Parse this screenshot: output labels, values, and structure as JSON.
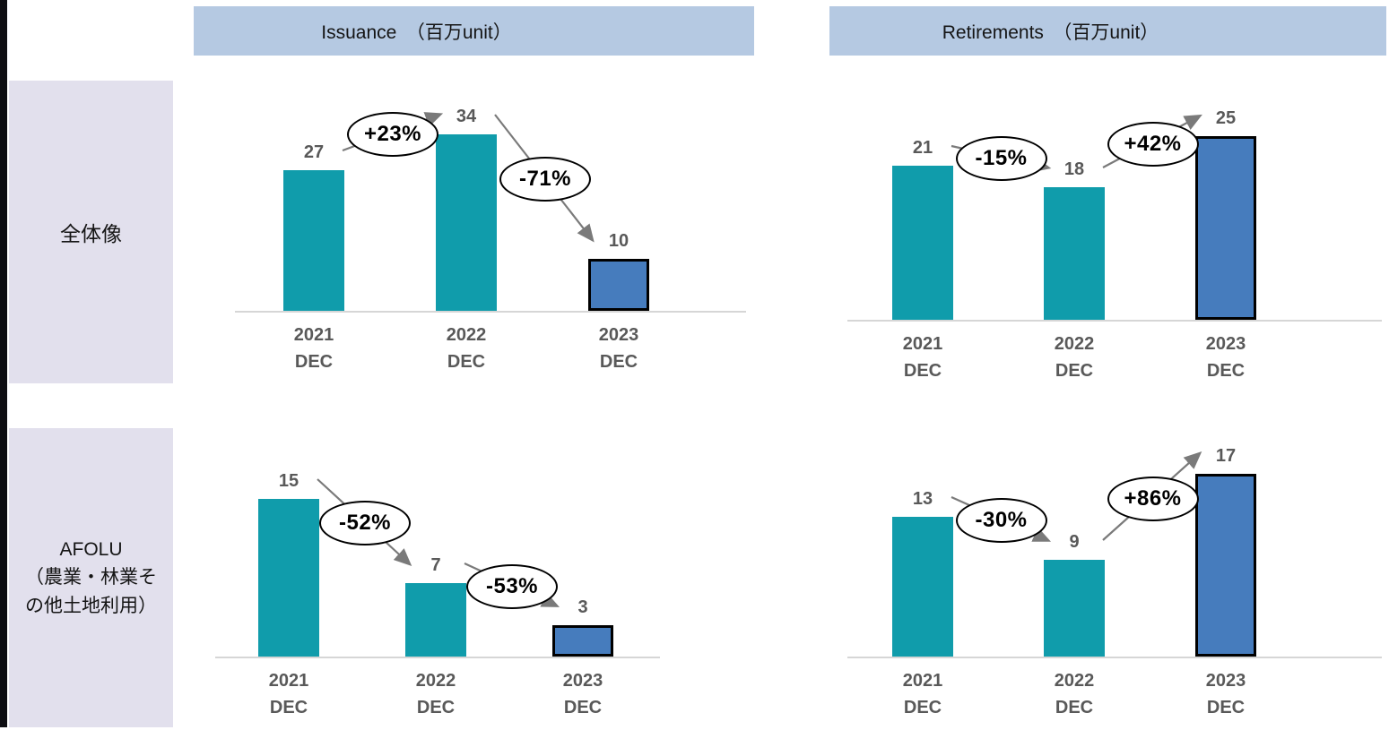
{
  "column_headers": [
    {
      "label": "Issuance　（百万unit）"
    },
    {
      "label": "Retirements　（百万unit）"
    }
  ],
  "row_headers": [
    {
      "label": "全体像"
    },
    {
      "label": "AFOLU\n（農業・林業そ\nの他土地利用）"
    }
  ],
  "colors": {
    "teal_bar": "#109cab",
    "blue_bar": "#467cbd",
    "blue_bar_border": "#000000",
    "column_header_band": "#b5c9e2",
    "row_header_band": "#e2e0ed",
    "value_label": "#595959",
    "arrow": "#7a7a7a",
    "baseline": "#d6d6d6",
    "left_strip": "#0e0e12"
  },
  "chart_data": [
    {
      "type": "bar",
      "column": "Issuance　（百万unit）",
      "row": "全体像",
      "unit": "百万unit",
      "categories": [
        "2021 DEC",
        "2022 DEC",
        "2023 DEC"
      ],
      "values": [
        27,
        34,
        10
      ],
      "bar_colors": [
        "teal",
        "teal",
        "blue"
      ],
      "annotations": [
        {
          "from": 0,
          "to": 1,
          "label": "+23%"
        },
        {
          "from": 1,
          "to": 2,
          "label": "-71%"
        }
      ]
    },
    {
      "type": "bar",
      "column": "Retirements　（百万unit）",
      "row": "全体像",
      "unit": "百万unit",
      "categories": [
        "2021 DEC",
        "2022 DEC",
        "2023 DEC"
      ],
      "values": [
        21,
        18,
        25
      ],
      "bar_colors": [
        "teal",
        "teal",
        "blue"
      ],
      "annotations": [
        {
          "from": 0,
          "to": 1,
          "label": "-15%"
        },
        {
          "from": 1,
          "to": 2,
          "label": "+42%"
        }
      ]
    },
    {
      "type": "bar",
      "column": "Issuance　（百万unit）",
      "row": "AFOLU（農業・林業その他土地利用）",
      "unit": "百万unit",
      "categories": [
        "2021 DEC",
        "2022 DEC",
        "2023 DEC"
      ],
      "values": [
        15,
        7,
        3
      ],
      "bar_colors": [
        "teal",
        "teal",
        "blue"
      ],
      "annotations": [
        {
          "from": 0,
          "to": 1,
          "label": "-52%"
        },
        {
          "from": 1,
          "to": 2,
          "label": "-53%"
        }
      ]
    },
    {
      "type": "bar",
      "column": "Retirements　（百万unit）",
      "row": "AFOLU（農業・林業その他土地利用）",
      "unit": "百万unit",
      "categories": [
        "2021 DEC",
        "2022 DEC",
        "2023 DEC"
      ],
      "values": [
        13,
        9,
        17
      ],
      "bar_colors": [
        "teal",
        "teal",
        "blue"
      ],
      "annotations": [
        {
          "from": 0,
          "to": 1,
          "label": "-30%"
        },
        {
          "from": 1,
          "to": 2,
          "label": "+86%"
        }
      ]
    }
  ]
}
